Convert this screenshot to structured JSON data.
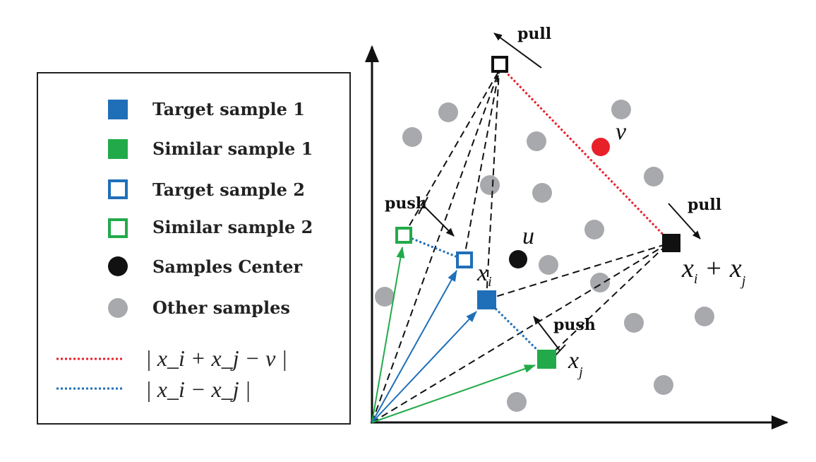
{
  "colors": {
    "blue": "#1f6fb8",
    "green": "#22aa4a",
    "red": "#e8202a",
    "black": "#111111",
    "gray": "#a7a9ac"
  },
  "legend": {
    "items": [
      {
        "marker": "filled-blue-square",
        "label": "Target sample 1"
      },
      {
        "marker": "filled-green-square",
        "label": "Similar sample 1"
      },
      {
        "marker": "hollow-blue-square",
        "label": "Target sample 2"
      },
      {
        "marker": "hollow-green-square",
        "label": "Similar sample 2"
      },
      {
        "marker": "black-circle",
        "label": "Samples Center"
      },
      {
        "marker": "gray-circle",
        "label": "Other samples"
      }
    ],
    "red_line_formula": "| x_i + x_j − v |",
    "blue_line_formula": "| x_i − x_j |"
  },
  "labels": {
    "pull_top": "pull",
    "pull_right": "pull",
    "push_left": "push",
    "push_bottom": "push",
    "v": "v",
    "u": "u",
    "xi": "x",
    "xi_sub": "i",
    "xj": "x",
    "xj_sub": "j",
    "sum_x1": "x",
    "sum_sub1": "i",
    "sum_plus": "+",
    "sum_x2": "x",
    "sum_sub2": "j"
  }
}
